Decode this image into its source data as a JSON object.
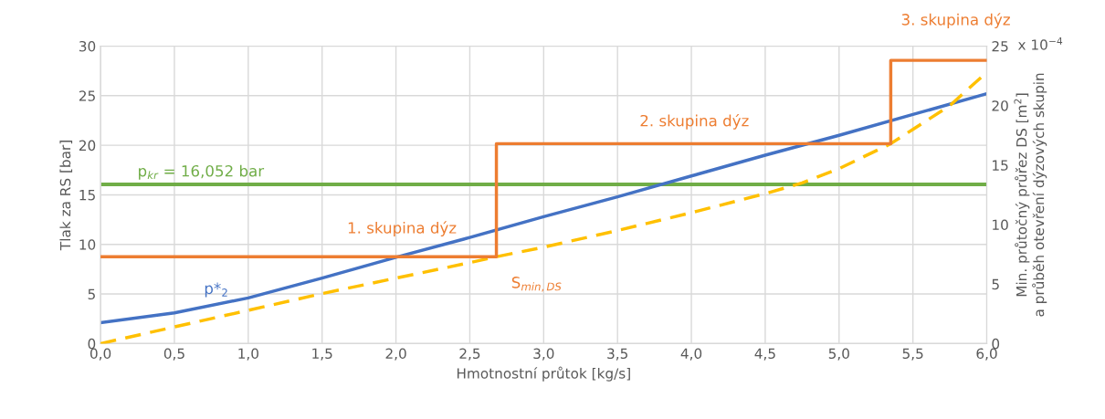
{
  "chart_data": {
    "type": "line",
    "xlabel": "Hmotnostní průtok [kg/s]",
    "ylabel": "Tlak za RS [bar]",
    "y2label": "Min. průtočný průřez DS [m$^{2}$]\na průběh otevření dýzových skupin",
    "xlim": [
      0,
      6
    ],
    "xticks": [
      {
        "value": 0,
        "label": "0,0"
      },
      {
        "value": 0.5,
        "label": "0,5"
      },
      {
        "value": 1,
        "label": "1,0"
      },
      {
        "value": 1.5,
        "label": "1,5"
      },
      {
        "value": 2,
        "label": "2,0"
      },
      {
        "value": 2.5,
        "label": "2,5"
      },
      {
        "value": 3,
        "label": "3,0"
      },
      {
        "value": 3.5,
        "label": "3,5"
      },
      {
        "value": 4,
        "label": "4,0"
      },
      {
        "value": 4.5,
        "label": "4,5"
      },
      {
        "value": 5,
        "label": "5,0"
      },
      {
        "value": 5.5,
        "label": "5,5"
      },
      {
        "value": 6,
        "label": "6,0"
      }
    ],
    "ylim": [
      0,
      30
    ],
    "yticks": [
      0,
      5,
      10,
      15,
      20,
      25,
      30
    ],
    "y2lim": [
      0,
      25
    ],
    "y2ticks": [
      0,
      5,
      10,
      15,
      20,
      25
    ],
    "grid": true,
    "series": [
      {
        "name": "p*$_{2}$",
        "color": "#4472c4",
        "line_style": "solid",
        "x": [
          0,
          0.5,
          1.0,
          1.5,
          2.0,
          2.5,
          3.0,
          3.5,
          4.0,
          4.5,
          5.0,
          5.5,
          6.0
        ],
        "values": [
          2.1,
          3.1,
          4.6,
          6.6,
          8.7,
          10.7,
          12.8,
          14.8,
          16.9,
          19.0,
          21.0,
          23.1,
          25.2
        ]
      },
      {
        "name": "S$_{min,DS}$",
        "color": "#ffc000",
        "line_style": "dashed",
        "axis": "y2",
        "x": [
          0,
          0.5,
          1.0,
          1.5,
          2.0,
          2.5,
          2.68,
          3.0,
          3.5,
          4.0,
          4.5,
          4.75,
          5.0,
          5.35,
          5.5,
          5.75,
          6.0
        ],
        "values": [
          0,
          1.4,
          2.8,
          4.2,
          5.5,
          6.8,
          7.3,
          8.1,
          9.5,
          11.0,
          12.6,
          13.5,
          14.7,
          16.8,
          18.0,
          20.0,
          22.8
        ]
      },
      {
        "type": "step",
        "color": "#ed7d31",
        "line_style": "solid",
        "axis": "y2",
        "x": [
          0,
          2.68,
          5.35,
          6.0
        ],
        "values": [
          7.3,
          16.8,
          23.8,
          23.8
        ]
      }
    ],
    "ref_lines": [
      {
        "axis": "y",
        "value": 16.052,
        "label": "p$_{kr}$ = 16,052 bar",
        "color": "#70ad47"
      }
    ],
    "annotations": [
      "1. skupina dýz",
      "2. skupina dýz",
      "3. skupina dýz",
      "x 10$^{−4}$"
    ]
  }
}
